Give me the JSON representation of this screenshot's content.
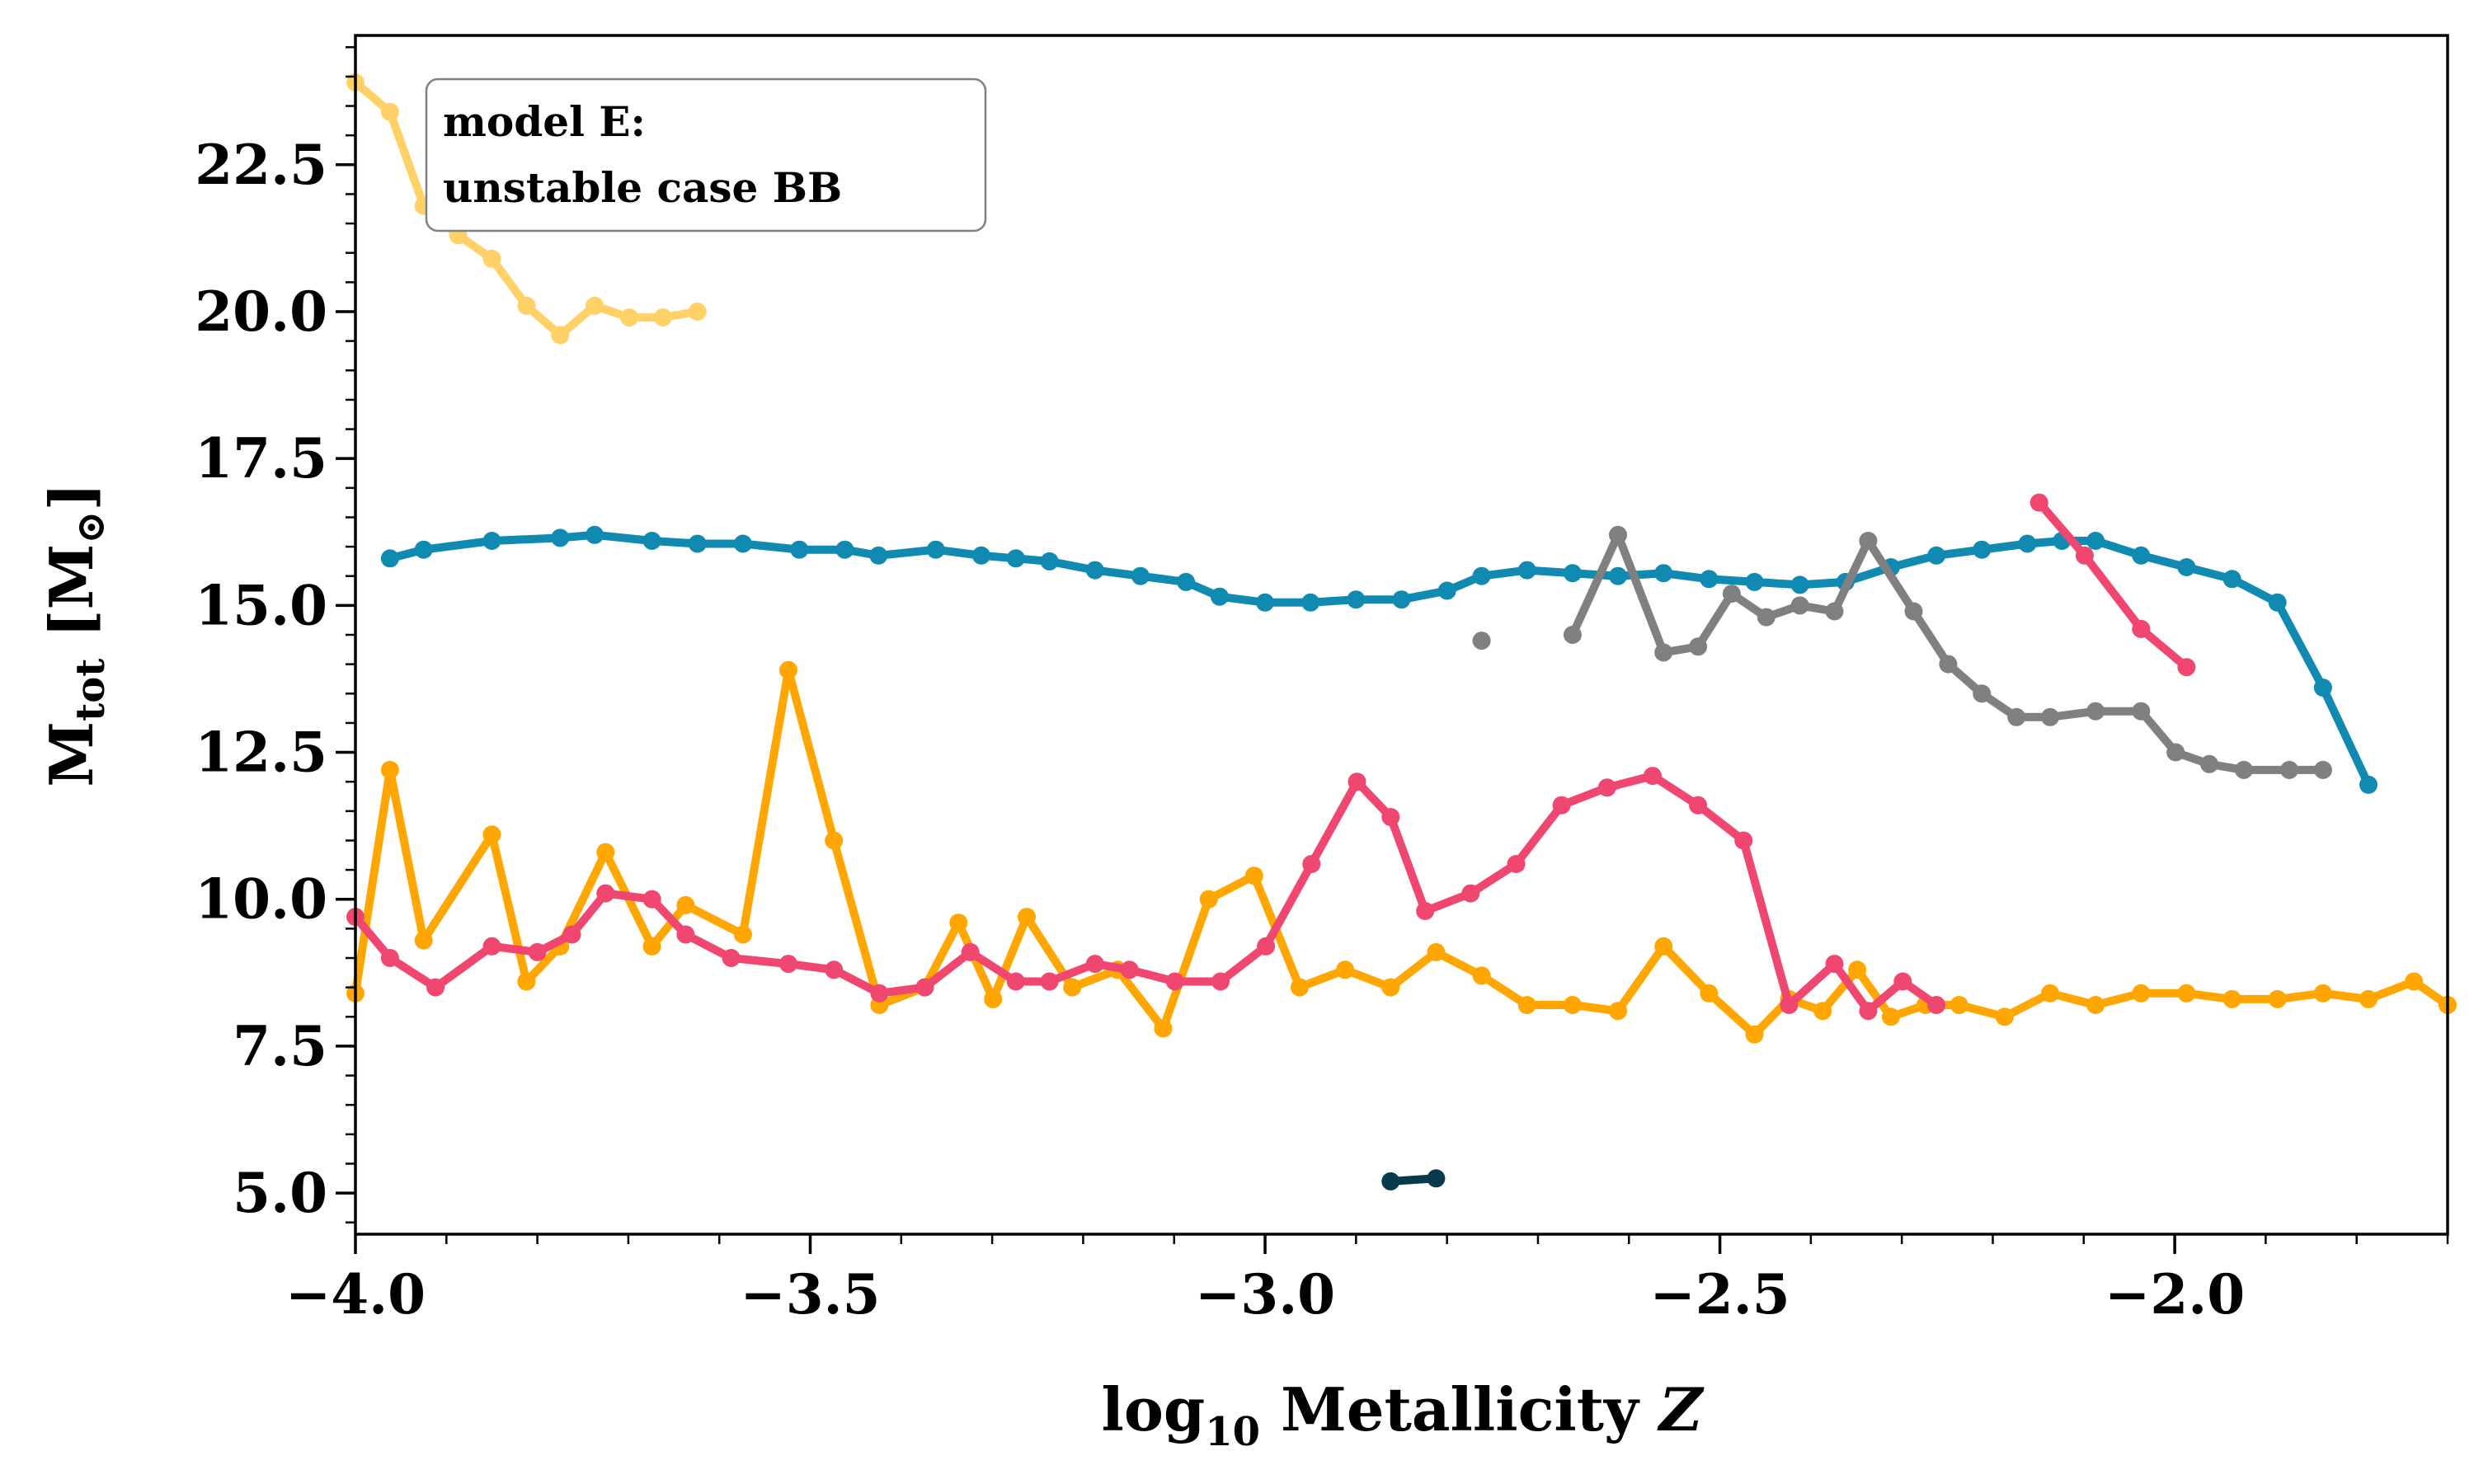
{
  "chart_data": {
    "type": "line",
    "xlabel": {
      "prefix": "log",
      "sub": "10",
      "main": " Metallicity ",
      "italic": "Z"
    },
    "ylabel": {
      "main": "M",
      "sub": "tot",
      "unit_open": " [M",
      "unit_sub": "⊙",
      "unit_close": "]"
    },
    "annotation": [
      "model E:",
      "unstable case BB"
    ],
    "xlim": [
      -4.0,
      -1.7
    ],
    "ylim": [
      4.3,
      24.7
    ],
    "x_ticks": [
      -4.0,
      -3.5,
      -3.0,
      -2.5,
      -2.0
    ],
    "x_tick_labels": [
      "−4.0",
      "−3.5",
      "−3.0",
      "−2.5",
      "−2.0"
    ],
    "y_ticks": [
      5.0,
      7.5,
      10.0,
      12.5,
      15.0,
      17.5,
      20.0,
      22.5
    ],
    "y_tick_labels": [
      "5.0",
      "7.5",
      "10.0",
      "12.5",
      "15.0",
      "17.5",
      "20.0",
      "22.5"
    ],
    "grid": false,
    "series": [
      {
        "color": "#ffd166",
        "x": [
          -4.0,
          -3.962,
          -3.925,
          -3.887,
          -3.85,
          -3.812,
          -3.775,
          -3.737,
          -3.699,
          -3.662,
          -3.624
        ],
        "y": [
          23.9,
          23.4,
          21.8,
          21.3,
          20.9,
          20.1,
          19.6,
          20.1,
          19.9,
          19.9,
          20.0
        ]
      },
      {
        "color": "#118ab2",
        "x": [
          -3.962,
          -3.925,
          -3.85,
          -3.775,
          -3.737,
          -3.674,
          -3.624,
          -3.574,
          -3.512,
          -3.462,
          -3.425,
          -3.362,
          -3.312,
          -3.274,
          -3.237,
          -3.187,
          -3.137,
          -3.087,
          -3.05,
          -3.0,
          -2.95,
          -2.9,
          -2.85,
          -2.8,
          -2.762,
          -2.712,
          -2.662,
          -2.612,
          -2.562,
          -2.512,
          -2.462,
          -2.412,
          -2.362,
          -2.312,
          -2.262,
          -2.212,
          -2.162,
          -2.124,
          -2.087,
          -2.037,
          -1.987,
          -1.937,
          -1.887,
          -1.837,
          -1.787
        ],
        "y": [
          15.8,
          15.95,
          16.1,
          16.15,
          16.2,
          16.1,
          16.05,
          16.05,
          15.95,
          15.95,
          15.85,
          15.95,
          15.85,
          15.8,
          15.75,
          15.6,
          15.5,
          15.4,
          15.15,
          15.05,
          15.05,
          15.1,
          15.1,
          15.25,
          15.5,
          15.6,
          15.55,
          15.5,
          15.55,
          15.45,
          15.4,
          15.35,
          15.4,
          15.65,
          15.85,
          15.95,
          16.05,
          16.1,
          16.1,
          15.85,
          15.65,
          15.45,
          15.05,
          13.6,
          11.95
        ]
      },
      {
        "color": "#808080",
        "x": [
          -2.662,
          -2.612,
          -2.562,
          -2.524,
          -2.487,
          -2.449,
          -2.412,
          -2.374,
          -2.337,
          -2.287,
          -2.249,
          -2.212,
          -2.174,
          -2.137,
          -2.087,
          -2.037,
          -1.999,
          -1.962,
          -1.924,
          -1.874,
          -1.837
        ],
        "y": [
          14.5,
          16.2,
          14.2,
          14.3,
          15.2,
          14.8,
          15.0,
          14.9,
          16.1,
          14.9,
          14.0,
          13.5,
          13.1,
          13.1,
          13.2,
          13.2,
          12.5,
          12.3,
          12.2,
          12.2,
          12.2
        ]
      },
      {
        "color": "#808080",
        "x": [
          -2.762
        ],
        "y": [
          14.4
        ]
      },
      {
        "color": "#ef476f",
        "x": [
          -2.149,
          -2.099,
          -2.037,
          -1.987
        ],
        "y": [
          16.75,
          15.85,
          14.6,
          13.95
        ]
      },
      {
        "color": "#ffa600",
        "x": [
          -4.0,
          -3.962,
          -3.925,
          -3.85,
          -3.812,
          -3.775,
          -3.725,
          -3.674,
          -3.637,
          -3.574,
          -3.524,
          -3.474,
          -3.424,
          -3.374,
          -3.337,
          -3.299,
          -3.262,
          -3.212,
          -3.162,
          -3.112,
          -3.062,
          -3.012,
          -2.962,
          -2.912,
          -2.862,
          -2.812,
          -2.762,
          -2.712,
          -2.662,
          -2.612,
          -2.562,
          -2.512,
          -2.462,
          -2.424,
          -2.387,
          -2.349,
          -2.312,
          -2.274,
          -2.237,
          -2.187,
          -2.137,
          -2.087,
          -2.037,
          -1.987,
          -1.937,
          -1.887,
          -1.837,
          -1.787,
          -1.737,
          -1.7
        ],
        "y": [
          8.4,
          12.2,
          9.3,
          11.1,
          8.6,
          9.2,
          10.8,
          9.2,
          9.9,
          9.4,
          13.9,
          11.0,
          8.2,
          8.5,
          9.6,
          8.3,
          9.7,
          8.5,
          8.8,
          7.8,
          10.0,
          10.4,
          8.5,
          8.8,
          8.5,
          9.1,
          8.7,
          8.2,
          8.2,
          8.1,
          9.2,
          8.4,
          7.7,
          8.3,
          8.1,
          8.8,
          8.0,
          8.2,
          8.2,
          8.0,
          8.4,
          8.2,
          8.4,
          8.4,
          8.3,
          8.3,
          8.4,
          8.3,
          8.6,
          8.2
        ]
      },
      {
        "color": "#ef476f",
        "x": [
          -4.0,
          -3.962,
          -3.912,
          -3.85,
          -3.8,
          -3.762,
          -3.725,
          -3.674,
          -3.637,
          -3.587,
          -3.524,
          -3.474,
          -3.424,
          -3.374,
          -3.324,
          -3.274,
          -3.237,
          -3.187,
          -3.149,
          -3.099,
          -3.049,
          -2.999,
          -2.949,
          -2.899,
          -2.862,
          -2.824,
          -2.774,
          -2.724,
          -2.674,
          -2.624,
          -2.574,
          -2.524,
          -2.474,
          -2.424,
          -2.374,
          -2.337,
          -2.299,
          -2.262
        ],
        "y": [
          9.7,
          9.0,
          8.5,
          9.2,
          9.1,
          9.4,
          10.1,
          10.0,
          9.4,
          9.0,
          8.9,
          8.8,
          8.4,
          8.5,
          9.1,
          8.6,
          8.6,
          8.9,
          8.8,
          8.6,
          8.6,
          9.2,
          10.6,
          12.0,
          11.4,
          9.8,
          10.1,
          10.6,
          11.6,
          11.9,
          12.1,
          11.6,
          11.0,
          8.2,
          8.9,
          8.1,
          8.6,
          8.2
        ]
      },
      {
        "color": "#073b4c",
        "x": [
          -2.862,
          -2.812
        ],
        "y": [
          5.2,
          5.25
        ]
      }
    ]
  }
}
